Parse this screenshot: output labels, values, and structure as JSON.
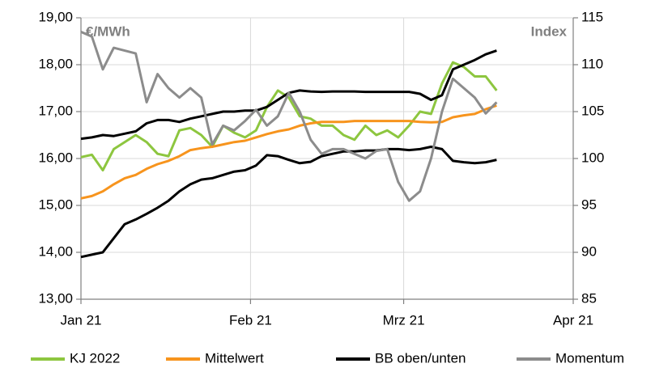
{
  "chart_data": {
    "type": "line",
    "y_label": "€/MWh",
    "y2_label": "Index",
    "x": [
      0,
      2,
      4,
      6,
      8,
      10,
      12,
      14,
      16,
      18,
      20,
      22,
      24,
      26,
      28,
      30,
      32,
      34,
      36,
      38,
      40,
      42,
      44,
      46,
      48,
      50,
      52,
      54,
      56,
      58,
      60,
      62,
      64,
      66,
      68,
      70,
      72,
      74,
      76
    ],
    "xlim": [
      0,
      90
    ],
    "xticks": [
      {
        "value": 0,
        "label": "Jan 21"
      },
      {
        "value": 31,
        "label": "Feb 21"
      },
      {
        "value": 59,
        "label": "Mrz 21"
      },
      {
        "value": 90,
        "label": "Apr 21"
      }
    ],
    "ylim": [
      13,
      19
    ],
    "yticks": [
      {
        "value": 13,
        "label": "13,00"
      },
      {
        "value": 14,
        "label": "14,00"
      },
      {
        "value": 15,
        "label": "15,00"
      },
      {
        "value": 16,
        "label": "16,00"
      },
      {
        "value": 17,
        "label": "17,00"
      },
      {
        "value": 18,
        "label": "18,00"
      },
      {
        "value": 19,
        "label": "19,00"
      }
    ],
    "y2lim": [
      85,
      115
    ],
    "y2ticks": [
      85,
      90,
      95,
      100,
      105,
      110,
      115
    ],
    "grid": true,
    "legend": "bottom",
    "series": [
      {
        "name": "KJ 2022",
        "color": "#8dc63f",
        "values": [
          16.03,
          16.08,
          15.75,
          16.2,
          16.35,
          16.5,
          16.35,
          16.1,
          16.05,
          16.6,
          16.65,
          16.5,
          16.25,
          16.7,
          16.55,
          16.45,
          16.6,
          17.1,
          17.45,
          17.3,
          16.9,
          16.85,
          16.7,
          16.7,
          16.5,
          16.4,
          16.7,
          16.5,
          16.6,
          16.45,
          16.7,
          17.0,
          16.95,
          17.6,
          18.05,
          17.95,
          17.75,
          17.75,
          17.45
        ]
      },
      {
        "name": "Mittelwert",
        "color": "#f7941d",
        "values": [
          15.15,
          15.2,
          15.3,
          15.45,
          15.58,
          15.65,
          15.78,
          15.88,
          15.95,
          16.05,
          16.18,
          16.22,
          16.25,
          16.3,
          16.35,
          16.38,
          16.45,
          16.52,
          16.58,
          16.62,
          16.7,
          16.75,
          16.78,
          16.78,
          16.78,
          16.8,
          16.8,
          16.8,
          16.8,
          16.8,
          16.8,
          16.78,
          16.77,
          16.78,
          16.88,
          16.92,
          16.95,
          17.05,
          17.13
        ]
      },
      {
        "name": "BB oben/unten",
        "color": "#000000",
        "values": [
          16.42,
          16.45,
          16.5,
          16.48,
          16.53,
          16.58,
          16.75,
          16.82,
          16.82,
          16.78,
          16.85,
          16.9,
          16.95,
          17.0,
          17.0,
          17.02,
          17.02,
          17.1,
          17.25,
          17.4,
          17.45,
          17.43,
          17.42,
          17.43,
          17.43,
          17.43,
          17.42,
          17.42,
          17.42,
          17.42,
          17.42,
          17.38,
          17.25,
          17.35,
          17.9,
          18.0,
          18.1,
          18.22,
          18.3
        ]
      },
      {
        "color": "#000000",
        "values": [
          13.9,
          13.95,
          14.0,
          14.3,
          14.6,
          14.7,
          14.82,
          14.95,
          15.1,
          15.3,
          15.45,
          15.55,
          15.58,
          15.65,
          15.72,
          15.75,
          15.85,
          16.07,
          16.05,
          15.97,
          15.9,
          15.93,
          16.05,
          16.1,
          16.15,
          16.15,
          16.17,
          16.17,
          16.2,
          16.2,
          16.18,
          16.2,
          16.25,
          16.2,
          15.95,
          15.92,
          15.9,
          15.92,
          15.97
        ]
      },
      {
        "name": "Momentum",
        "color": "#8c8c8c",
        "axis": "y2",
        "values": [
          113.5,
          113,
          109.5,
          111.8,
          111.5,
          111.2,
          106,
          109,
          107.5,
          106.5,
          107.5,
          106.5,
          101.5,
          103.5,
          103,
          104,
          105.2,
          103.5,
          104.5,
          107,
          105,
          102,
          100.5,
          101,
          101,
          100.5,
          100,
          100.8,
          101,
          97.5,
          95.5,
          96.5,
          100,
          105,
          108.5,
          107.5,
          106.5,
          104.8,
          106
        ]
      }
    ]
  }
}
